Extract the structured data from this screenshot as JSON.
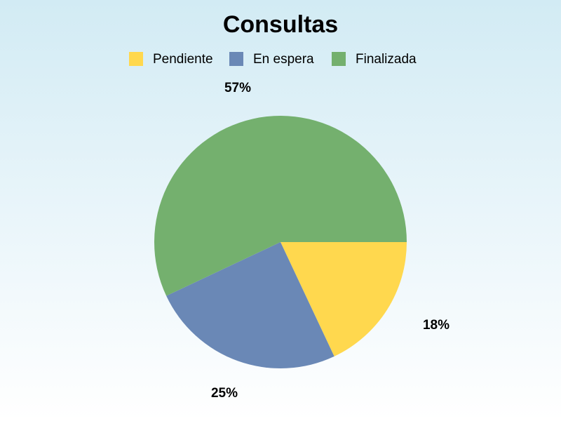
{
  "chart_data": {
    "type": "pie",
    "title": "Consultas",
    "legend_position": "top",
    "series": [
      {
        "name": "Pendiente",
        "value": 18,
        "label": "18%",
        "color": "#ffd84e"
      },
      {
        "name": "En espera",
        "value": 25,
        "label": "25%",
        "color": "#6a88b6"
      },
      {
        "name": "Finalizada",
        "value": 57,
        "label": "57%",
        "color": "#74b06e"
      }
    ]
  }
}
